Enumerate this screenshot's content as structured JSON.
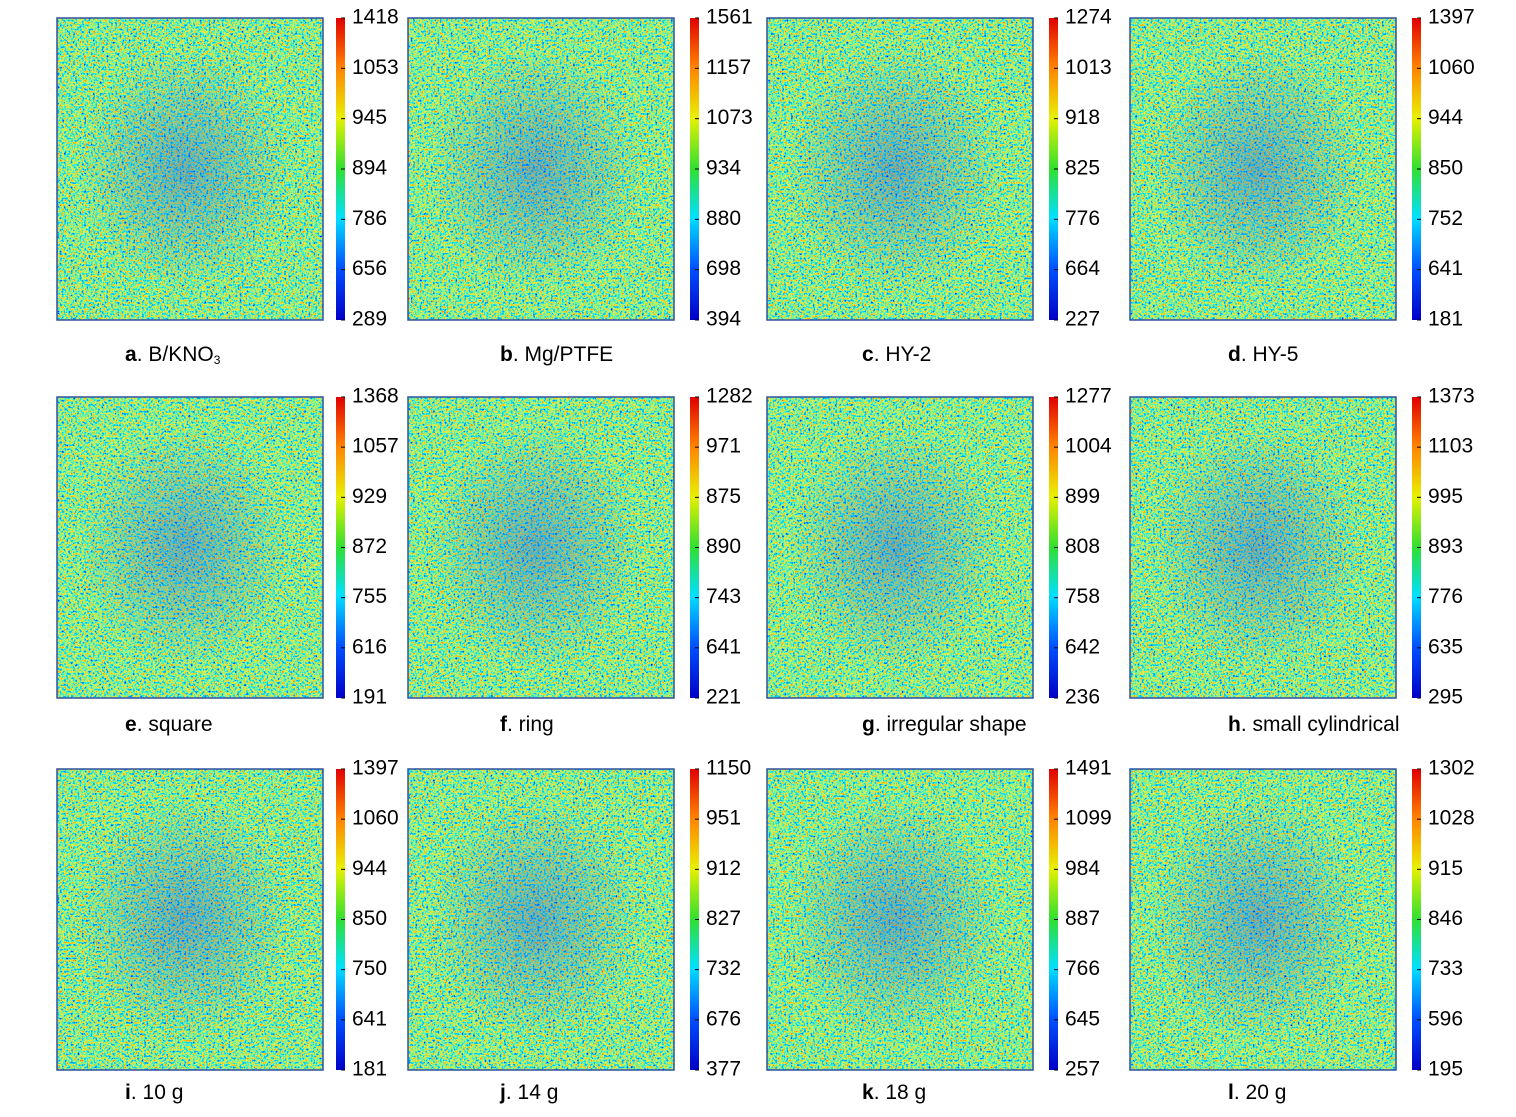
{
  "panels": [
    {
      "label": "a",
      "caption": ". B/KNO",
      "caption_sub": "3",
      "colorbar": [
        289,
        656,
        786,
        894,
        945,
        1053,
        1418
      ]
    },
    {
      "label": "b",
      "caption": ". Mg/PTFE",
      "colorbar": [
        394,
        698,
        880,
        934,
        1073,
        1157,
        1561
      ]
    },
    {
      "label": "c",
      "caption": ". HY-2",
      "colorbar": [
        227,
        664,
        776,
        825,
        918,
        1013,
        1274
      ]
    },
    {
      "label": "d",
      "caption": ". HY-5",
      "colorbar": [
        181,
        641,
        752,
        850,
        944,
        1060,
        1397
      ]
    },
    {
      "label": "e",
      "caption": ". square",
      "colorbar": [
        191,
        616,
        755,
        872,
        929,
        1057,
        1368
      ]
    },
    {
      "label": "f",
      "caption": ". ring",
      "colorbar": [
        221,
        641,
        743,
        890,
        875,
        971,
        1282
      ]
    },
    {
      "label": "g",
      "caption": ". irregular shape",
      "colorbar": [
        236,
        642,
        758,
        808,
        899,
        1004,
        1277
      ]
    },
    {
      "label": "h",
      "caption": ". small cylindrical",
      "colorbar": [
        295,
        635,
        776,
        893,
        995,
        1103,
        1373
      ]
    },
    {
      "label": "i",
      "caption": ". 10 g",
      "colorbar": [
        181,
        641,
        750,
        850,
        944,
        1060,
        1397
      ]
    },
    {
      "label": "j",
      "caption": ". 14 g",
      "colorbar": [
        377,
        676,
        732,
        827,
        912,
        951,
        1150
      ]
    },
    {
      "label": "k",
      "caption": ". 18 g",
      "colorbar": [
        257,
        645,
        766,
        887,
        984,
        1099,
        1491
      ]
    },
    {
      "label": "l",
      "caption": ". 20 g",
      "colorbar": [
        195,
        596,
        733,
        846,
        915,
        1028,
        1302
      ]
    }
  ]
}
